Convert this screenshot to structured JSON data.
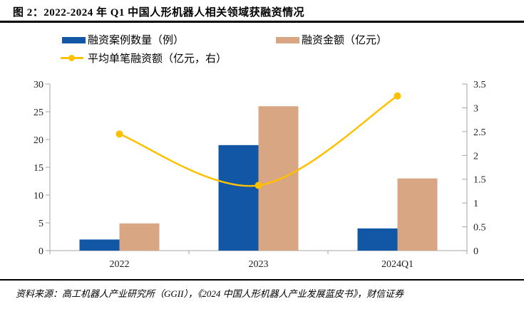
{
  "header": {
    "title": "图 2：2022-2024 年 Q1 中国人形机器人相关领域获融资情况"
  },
  "footer": {
    "source": "资料来源：高工机器人产业研究所（GGII），《2024 中国人形机器人产业发展蓝皮书》，财信证券"
  },
  "colors": {
    "bar_cases": "#1257A5",
    "bar_amount": "#D9A684",
    "line_avg": "#FFC000",
    "axis": "#A6A6A6",
    "text": "#1F1F1F"
  },
  "chart_data": {
    "type": "bar",
    "title": "2022-2024 年 Q1 中国人形机器人相关领域获融资情况",
    "categories": [
      "2022",
      "2023",
      "2024Q1"
    ],
    "series": [
      {
        "id": "cases",
        "name": "融资案例数量（例）",
        "type": "bar",
        "axis": "left",
        "color": "#1257A5",
        "values": [
          2,
          19,
          4
        ]
      },
      {
        "id": "amount",
        "name": "融资金额（亿元）",
        "type": "bar",
        "axis": "left",
        "color": "#D9A684",
        "values": [
          4.9,
          26,
          13
        ]
      },
      {
        "id": "avg",
        "name": "平均单笔融资额（亿元，右）",
        "type": "line",
        "axis": "right",
        "color": "#FFC000",
        "values": [
          2.45,
          1.37,
          3.25
        ]
      }
    ],
    "left_axis": {
      "min": 0,
      "max": 30,
      "step": 5,
      "ticks": [
        0,
        5,
        10,
        15,
        20,
        25,
        30
      ]
    },
    "right_axis": {
      "min": 0,
      "max": 3.5,
      "step": 0.5,
      "ticks": [
        0,
        0.5,
        1,
        1.5,
        2,
        2.5,
        3,
        3.5
      ]
    },
    "grid": false,
    "legend_position": "top-left",
    "line_smoothing": true
  }
}
